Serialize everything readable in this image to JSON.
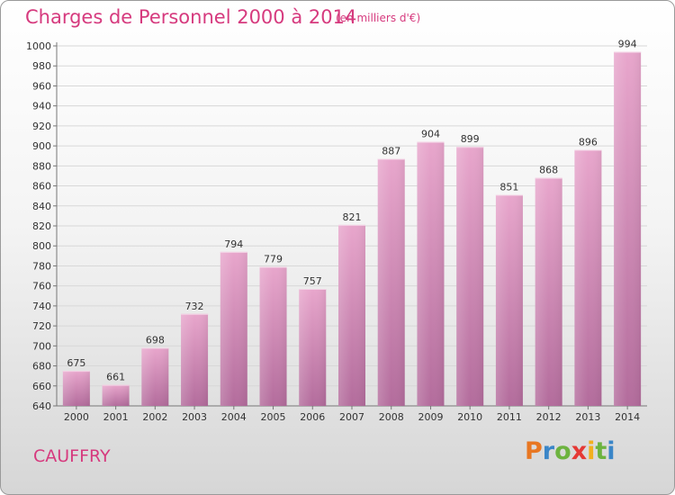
{
  "header": {
    "title": "Charges de Personnel 2000 à 2014",
    "unit_note": "(en milliers d'€)"
  },
  "footer": {
    "commune": "CAUFFRY",
    "logo_text": "Proxiti",
    "logo_colors": [
      "#e87722",
      "#3a86c8",
      "#6db33f",
      "#e53935",
      "#f2b01e",
      "#6db33f",
      "#3a86c8"
    ]
  },
  "colors": {
    "accent": "#d63a7e",
    "bar_top": "#e8a6cc",
    "bar_bottom": "#b36c9c"
  },
  "chart_data": {
    "type": "bar",
    "title": "Charges de Personnel 2000 à 2014",
    "subtitle": "(en milliers d'€)",
    "categories": [
      "2000",
      "2001",
      "2002",
      "2003",
      "2004",
      "2005",
      "2006",
      "2007",
      "2008",
      "2009",
      "2010",
      "2011",
      "2012",
      "2013",
      "2014"
    ],
    "values": [
      675,
      661,
      698,
      732,
      794,
      779,
      757,
      821,
      887,
      904,
      899,
      851,
      868,
      896,
      994
    ],
    "ylim": [
      640,
      1000
    ],
    "yticks": [
      640,
      660,
      680,
      700,
      720,
      740,
      760,
      780,
      800,
      820,
      840,
      860,
      880,
      900,
      920,
      940,
      960,
      980,
      1000
    ],
    "grid": true,
    "data_labels": true,
    "legend": "none"
  }
}
